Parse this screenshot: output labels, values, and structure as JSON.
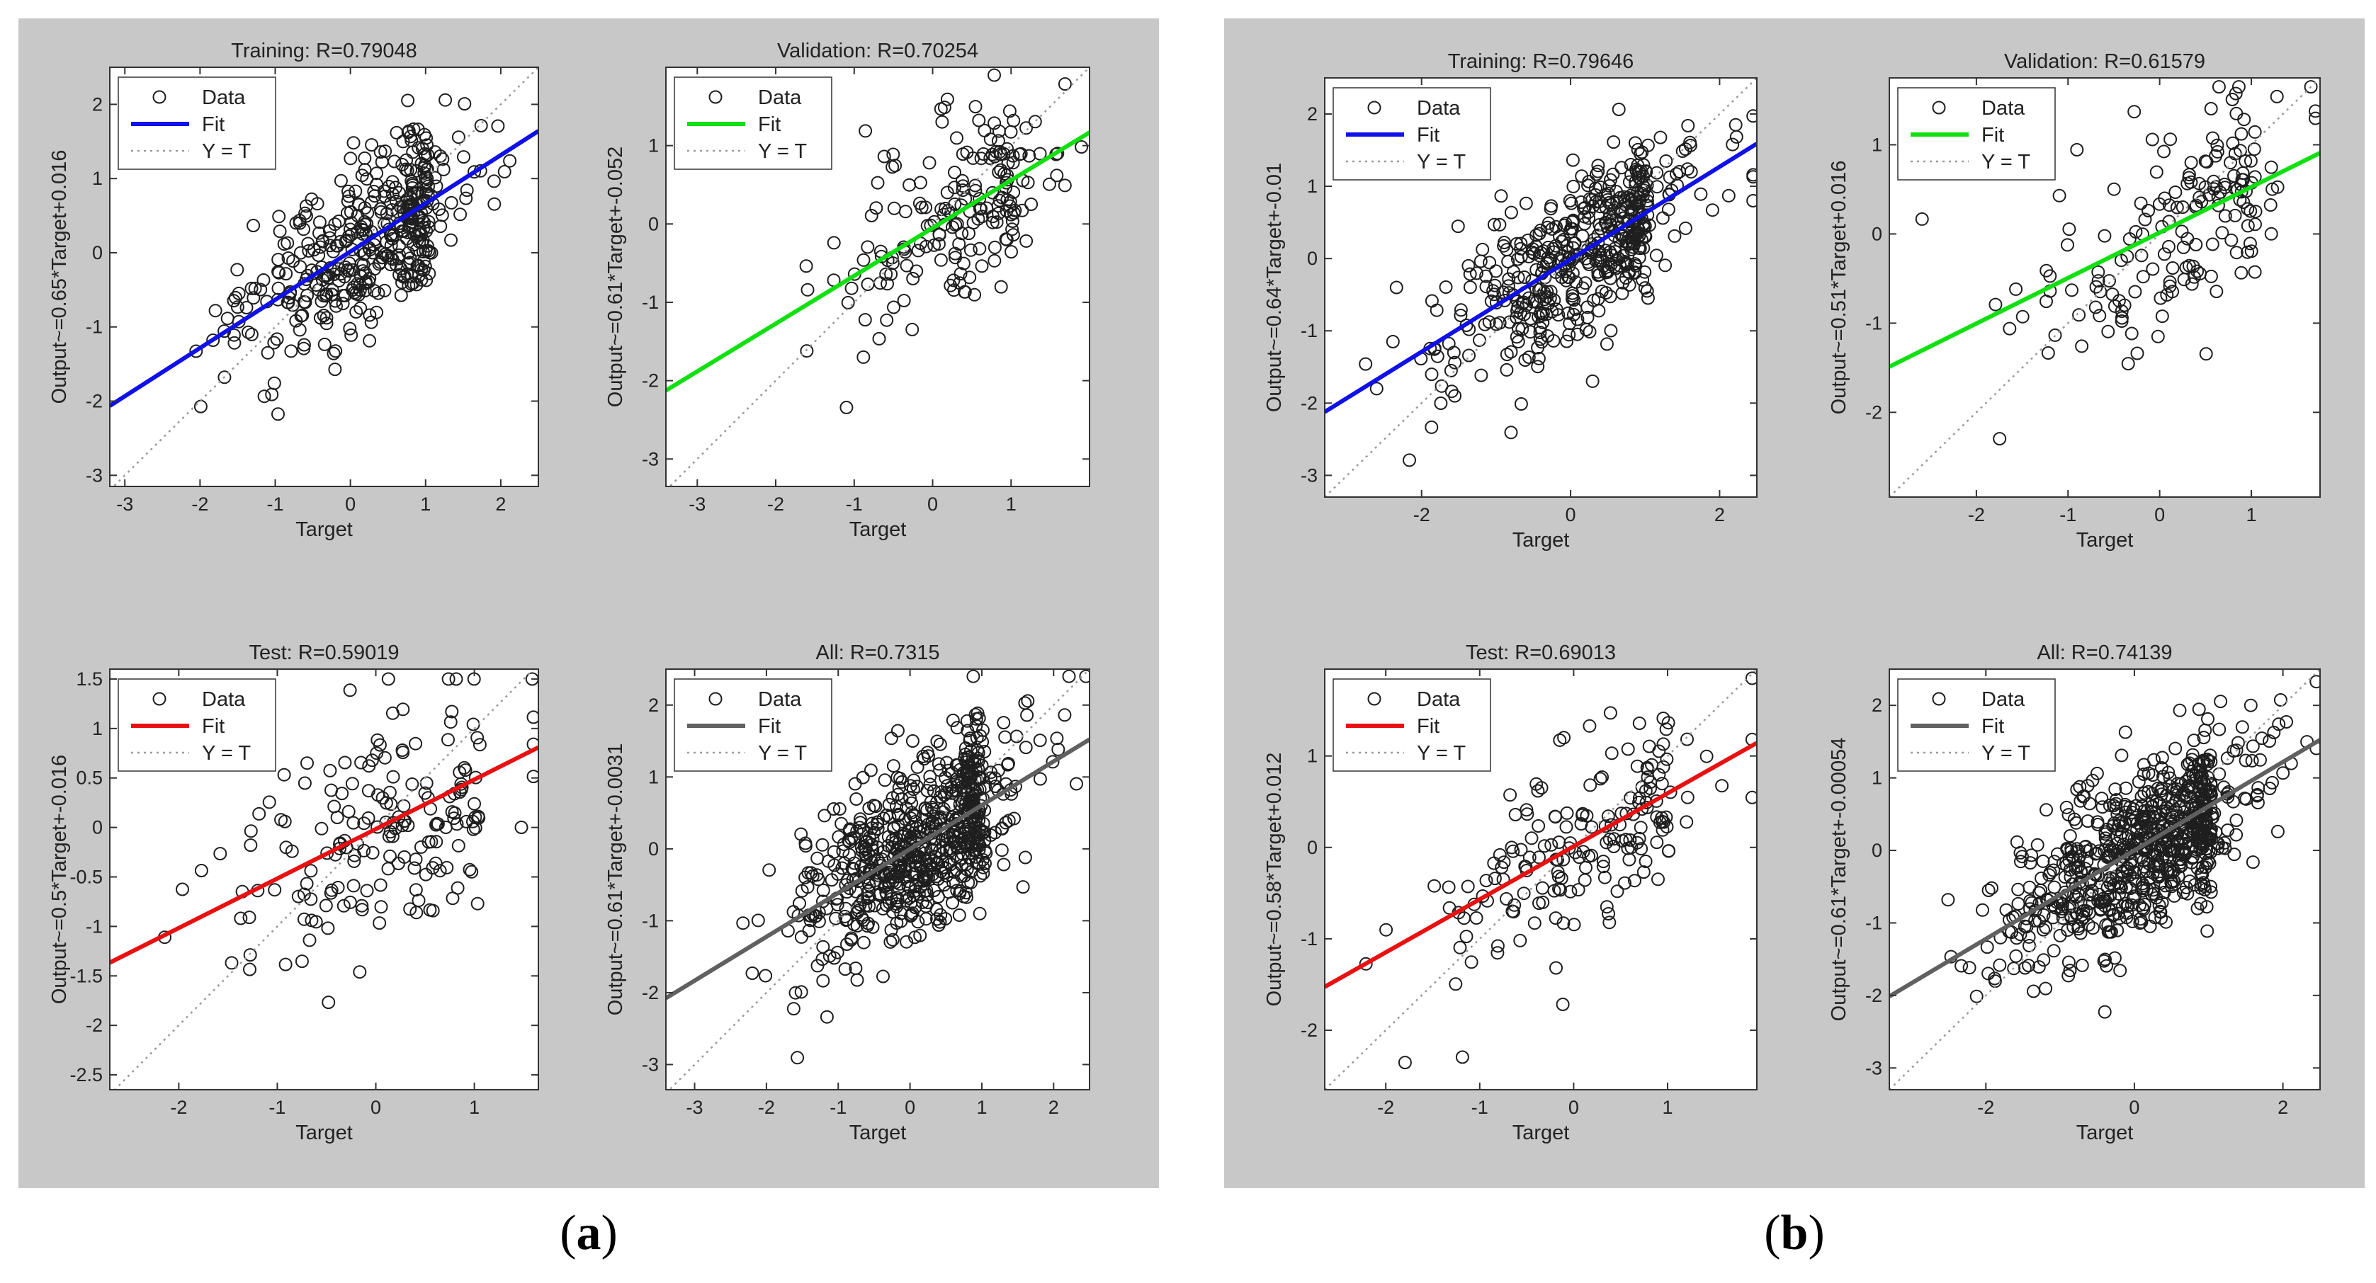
{
  "captions": {
    "a": {
      "open": "(",
      "letter": "a",
      "close": ")"
    },
    "b": {
      "open": "(",
      "letter": "b",
      "close": ")"
    }
  },
  "legend": {
    "data": "Data",
    "fit": "Fit",
    "yt": "Y = T"
  },
  "colors": {
    "panel_bg": "#c8c8c8",
    "plot_bg": "#ffffff",
    "points": "#1e1e1e",
    "ref_line": "#9a9a9a",
    "training": "#1010e8",
    "validation": "#10e010",
    "test": "#e81010",
    "all": "#606060"
  },
  "chart_data": [
    {
      "id": "a1",
      "panel": "a",
      "type": "scatter",
      "title": "Training: R=0.79048",
      "xlabel": "Target",
      "ylabel": "Output~=0.65*Target+0.016",
      "xlim": [
        -3.2,
        2.5
      ],
      "ylim": [
        -3.15,
        2.5
      ],
      "xticks": [
        -3,
        -2,
        -1,
        0,
        1,
        2
      ],
      "yticks": [
        -3,
        -2,
        -1,
        0,
        1,
        2
      ],
      "fit": {
        "slope": 0.65,
        "intercept": 0.016,
        "color_key": "training"
      },
      "n_points": 420,
      "noise": 0.55,
      "seed": 11,
      "data_spread": {
        "center": 0.3,
        "sd": 0.9
      },
      "legend": [
        "Data",
        "Fit",
        "Y = T"
      ]
    },
    {
      "id": "a2",
      "panel": "a",
      "type": "scatter",
      "title": "Validation: R=0.70254",
      "xlabel": "Target",
      "ylabel": "Output~=0.61*Target+-0.052",
      "xlim": [
        -3.4,
        2.0
      ],
      "ylim": [
        -3.35,
        2.0
      ],
      "xticks": [
        -3,
        -2,
        -1,
        0,
        1
      ],
      "yticks": [
        -3,
        -2,
        -1,
        0,
        1
      ],
      "fit": {
        "slope": 0.61,
        "intercept": -0.052,
        "color_key": "validation"
      },
      "n_points": 190,
      "noise": 0.6,
      "seed": 23,
      "data_spread": {
        "center": 0.2,
        "sd": 0.85
      },
      "legend": [
        "Data",
        "Fit",
        "Y = T"
      ]
    },
    {
      "id": "a3",
      "panel": "a",
      "type": "scatter",
      "title": "Test: R=0.59019",
      "xlabel": "Target",
      "ylabel": "Output~=0.5*Target+-0.016",
      "xlim": [
        -2.7,
        1.65
      ],
      "ylim": [
        -2.65,
        1.6
      ],
      "xticks": [
        -2,
        -1,
        0,
        1
      ],
      "yticks": [
        -2.5,
        -2,
        -1.5,
        -1,
        -0.5,
        0,
        0.5,
        1,
        1.5
      ],
      "fit": {
        "slope": 0.5,
        "intercept": -0.016,
        "color_key": "test"
      },
      "n_points": 180,
      "noise": 0.6,
      "seed": 37,
      "data_spread": {
        "center": 0.2,
        "sd": 0.8
      },
      "legend": [
        "Data",
        "Fit",
        "Y = T"
      ]
    },
    {
      "id": "a4",
      "panel": "a",
      "type": "scatter",
      "title": "All: R=0.7315",
      "xlabel": "Target",
      "ylabel": "Output~=0.61*Target+-0.0031",
      "xlim": [
        -3.4,
        2.5
      ],
      "ylim": [
        -3.35,
        2.5
      ],
      "xticks": [
        -3,
        -2,
        -1,
        0,
        1,
        2
      ],
      "yticks": [
        -3,
        -2,
        -1,
        0,
        1,
        2
      ],
      "fit": {
        "slope": 0.61,
        "intercept": -0.0031,
        "color_key": "all"
      },
      "n_points": 700,
      "noise": 0.58,
      "seed": 41,
      "data_spread": {
        "center": 0.25,
        "sd": 0.9
      },
      "legend": [
        "Data",
        "Fit",
        "Y = T"
      ]
    },
    {
      "id": "b1",
      "panel": "b",
      "type": "scatter",
      "title": "Training: R=0.79646",
      "xlabel": "Target",
      "ylabel": "Output~=0.64*Target+-0.01",
      "xlim": [
        -3.3,
        2.5
      ],
      "ylim": [
        -3.3,
        2.5
      ],
      "xticks": [
        -2,
        0,
        2
      ],
      "yticks": [
        -3,
        -2,
        -1,
        0,
        1,
        2
      ],
      "fit": {
        "slope": 0.64,
        "intercept": -0.01,
        "color_key": "training"
      },
      "n_points": 480,
      "noise": 0.55,
      "seed": 53,
      "data_spread": {
        "center": 0.2,
        "sd": 0.95
      },
      "legend": [
        "Data",
        "Fit",
        "Y = T"
      ]
    },
    {
      "id": "b2",
      "panel": "b",
      "type": "scatter",
      "title": "Validation: R=0.61579",
      "xlabel": "Target",
      "ylabel": "Output~=0.51*Target+0.016",
      "xlim": [
        -2.95,
        1.75
      ],
      "ylim": [
        -2.95,
        1.75
      ],
      "xticks": [
        -2,
        -1,
        0,
        1
      ],
      "yticks": [
        -2,
        -1,
        0,
        1
      ],
      "fit": {
        "slope": 0.51,
        "intercept": 0.016,
        "color_key": "validation"
      },
      "n_points": 170,
      "noise": 0.6,
      "seed": 67,
      "data_spread": {
        "center": 0.25,
        "sd": 0.8
      },
      "legend": [
        "Data",
        "Fit",
        "Y = T"
      ]
    },
    {
      "id": "b3",
      "panel": "b",
      "type": "scatter",
      "title": "Test: R=0.69013",
      "xlabel": "Target",
      "ylabel": "Output~=0.58*Target+0.012",
      "xlim": [
        -2.65,
        1.95
      ],
      "ylim": [
        -2.65,
        1.95
      ],
      "xticks": [
        -2,
        -1,
        0,
        1
      ],
      "yticks": [
        -2,
        -1,
        0,
        1
      ],
      "fit": {
        "slope": 0.58,
        "intercept": 0.012,
        "color_key": "test"
      },
      "n_points": 180,
      "noise": 0.55,
      "seed": 71,
      "data_spread": {
        "center": 0.2,
        "sd": 0.8
      },
      "legend": [
        "Data",
        "Fit",
        "Y = T"
      ]
    },
    {
      "id": "b4",
      "panel": "b",
      "type": "scatter",
      "title": "All: R=0.74139",
      "xlabel": "Target",
      "ylabel": "Output~=0.61*Target+-0.00054",
      "xlim": [
        -3.3,
        2.5
      ],
      "ylim": [
        -3.3,
        2.5
      ],
      "xticks": [
        -2,
        0,
        2
      ],
      "yticks": [
        -3,
        -2,
        -1,
        0,
        1,
        2
      ],
      "fit": {
        "slope": 0.61,
        "intercept": -0.00054,
        "color_key": "all"
      },
      "n_points": 760,
      "noise": 0.56,
      "seed": 83,
      "data_spread": {
        "center": 0.25,
        "sd": 0.95
      },
      "legend": [
        "Data",
        "Fit",
        "Y = T"
      ]
    }
  ]
}
